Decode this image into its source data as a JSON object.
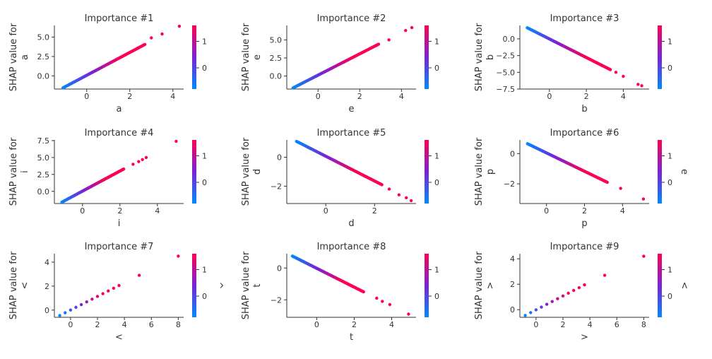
{
  "colorbar": {
    "colors": [
      "#008afb",
      "#7a22d8",
      "#ff0052"
    ]
  },
  "chart_data": [
    {
      "type": "scatter",
      "title": "Importance #1",
      "ylabel_lines": [
        "SHAP value for",
        "a"
      ],
      "xlabel": "a",
      "color_label": "",
      "xlim": [
        -1.5,
        4.5
      ],
      "ylim": [
        -1.7,
        6.5
      ],
      "xticks": [
        0,
        2,
        4
      ],
      "xtick_labels": [
        "0",
        "2",
        "4"
      ],
      "yticks": [
        0.0,
        2.5,
        5.0
      ],
      "ytick_labels": [
        "0.0",
        "2.5",
        "5.0"
      ],
      "cticks": [
        1,
        0
      ],
      "ctick_labels": [
        "1",
        "0"
      ],
      "clim": [
        -0.8,
        1.6
      ],
      "line": {
        "x0": -1.1,
        "x1": 2.7,
        "y0": -1.55,
        "y1": 4.05,
        "n": 130
      },
      "outliers": [
        [
          3.0,
          4.9
        ],
        [
          3.5,
          5.4
        ],
        [
          4.3,
          6.4
        ]
      ]
    },
    {
      "type": "scatter",
      "title": "Importance #2",
      "ylabel_lines": [
        "SHAP value for",
        "e"
      ],
      "xlabel": "e",
      "color_label": "",
      "xlim": [
        -1.5,
        4.7
      ],
      "ylim": [
        -1.8,
        7.0
      ],
      "xticks": [
        0,
        2,
        4
      ],
      "xtick_labels": [
        "0",
        "2",
        "4"
      ],
      "yticks": [
        0.0,
        2.5,
        5.0
      ],
      "ytick_labels": [
        "0.0",
        "2.5",
        "5.0"
      ],
      "cticks": [
        1,
        0
      ],
      "ctick_labels": [
        "1",
        "0"
      ],
      "clim": [
        -0.8,
        1.6
      ],
      "line": {
        "x0": -1.2,
        "x1": 2.9,
        "y0": -1.65,
        "y1": 4.4,
        "n": 130
      },
      "outliers": [
        [
          3.4,
          5.0
        ],
        [
          4.2,
          6.3
        ],
        [
          4.5,
          6.7
        ]
      ]
    },
    {
      "type": "scatter",
      "title": "Importance #3",
      "ylabel_lines": [
        "SHAP value for",
        "b"
      ],
      "xlabel": "b",
      "color_label": "",
      "xlim": [
        -1.6,
        5.4
      ],
      "ylim": [
        -7.5,
        2.0
      ],
      "xticks": [
        0,
        2,
        4
      ],
      "xtick_labels": [
        "0",
        "2",
        "4"
      ],
      "yticks": [
        0.0,
        -2.5,
        -5.0,
        -7.5
      ],
      "ytick_labels": [
        "0.0",
        "−2.5",
        "−5.0",
        "−7.5"
      ],
      "cticks": [
        1,
        0
      ],
      "ctick_labels": [
        "1",
        "0"
      ],
      "clim": [
        -0.8,
        1.6
      ],
      "line": {
        "x0": -1.2,
        "x1": 3.3,
        "y0": 1.65,
        "y1": -4.6,
        "n": 130
      },
      "outliers": [
        [
          3.6,
          -5.0
        ],
        [
          4.0,
          -5.6
        ],
        [
          4.8,
          -6.8
        ],
        [
          5.0,
          -7.0
        ]
      ]
    },
    {
      "type": "scatter",
      "title": "Importance #4",
      "ylabel_lines": [
        "SHAP value for",
        "i"
      ],
      "xlabel": "i",
      "color_label": "",
      "xlim": [
        -1.5,
        5.4
      ],
      "ylim": [
        -1.8,
        7.6
      ],
      "xticks": [
        0,
        2,
        4
      ],
      "xtick_labels": [
        "0",
        "2",
        "4"
      ],
      "yticks": [
        0.0,
        2.5,
        5.0,
        7.5
      ],
      "ytick_labels": [
        "0.0",
        "2.5",
        "5.0",
        "7.5"
      ],
      "cticks": [
        1,
        0
      ],
      "ctick_labels": [
        "1",
        "0"
      ],
      "clim": [
        -0.8,
        1.6
      ],
      "line": {
        "x0": -1.1,
        "x1": 2.2,
        "y0": -1.6,
        "y1": 3.3,
        "n": 120
      },
      "outliers": [
        [
          2.7,
          4.0
        ],
        [
          3.0,
          4.4
        ],
        [
          3.2,
          4.7
        ],
        [
          3.4,
          5.0
        ],
        [
          5.0,
          7.4
        ]
      ]
    },
    {
      "type": "scatter",
      "title": "Importance #5",
      "ylabel_lines": [
        "SHAP value for",
        "d"
      ],
      "xlabel": "d",
      "color_label": "",
      "xlim": [
        -1.6,
        3.7
      ],
      "ylim": [
        -3.2,
        1.2
      ],
      "xticks": [
        0,
        2
      ],
      "xtick_labels": [
        "0",
        "2"
      ],
      "yticks": [
        0,
        -2
      ],
      "ytick_labels": [
        "0",
        "−2"
      ],
      "cticks": [
        1,
        0
      ],
      "ctick_labels": [
        "1",
        "0"
      ],
      "clim": [
        -0.8,
        1.6
      ],
      "line": {
        "x0": -1.2,
        "x1": 2.3,
        "y0": 1.1,
        "y1": -1.9,
        "n": 130
      },
      "outliers": [
        [
          2.6,
          -2.2
        ],
        [
          3.0,
          -2.6
        ],
        [
          3.3,
          -2.8
        ],
        [
          3.5,
          -3.0
        ]
      ]
    },
    {
      "type": "scatter",
      "title": "Importance #6",
      "ylabel_lines": [
        "SHAP value for",
        "p"
      ],
      "xlabel": "p",
      "color_label": "e",
      "xlim": [
        -1.4,
        5.4
      ],
      "ylim": [
        -3.3,
        0.9
      ],
      "xticks": [
        0,
        2,
        4
      ],
      "xtick_labels": [
        "0",
        "2",
        "4"
      ],
      "yticks": [
        0,
        -2
      ],
      "ytick_labels": [
        "0",
        "−2"
      ],
      "cticks": [
        1,
        0
      ],
      "ctick_labels": [
        "1",
        "0"
      ],
      "clim": [
        -0.8,
        1.6
      ],
      "line": {
        "x0": -1.0,
        "x1": 3.2,
        "y0": 0.65,
        "y1": -1.9,
        "n": 130
      },
      "outliers": [
        [
          3.9,
          -2.3
        ],
        [
          5.1,
          -3.0
        ]
      ]
    },
    {
      "type": "scatter",
      "title": "Importance #7",
      "ylabel_lines": [
        "SHAP value for",
        "<"
      ],
      "xlabel": "<",
      "color_label": "^",
      "xlim": [
        -1.2,
        8.4
      ],
      "ylim": [
        -0.6,
        4.7
      ],
      "xticks": [
        0,
        2,
        4,
        6,
        8
      ],
      "xtick_labels": [
        "0",
        "2",
        "4",
        "6",
        "8"
      ],
      "yticks": [
        0,
        2,
        4
      ],
      "ytick_labels": [
        "0",
        "2",
        "4"
      ],
      "cticks": [
        1,
        0
      ],
      "ctick_labels": [
        "1",
        "0"
      ],
      "clim": [
        -0.8,
        1.6
      ],
      "line": {
        "x0": -0.8,
        "x1": 3.6,
        "y0": -0.45,
        "y1": 2.05,
        "n": 12
      },
      "outliers": [
        [
          5.1,
          2.9
        ],
        [
          8.0,
          4.5
        ]
      ]
    },
    {
      "type": "scatter",
      "title": "Importance #8",
      "ylabel_lines": [
        "SHAP value for",
        "t"
      ],
      "xlabel": "t",
      "color_label": "",
      "xlim": [
        -1.6,
        5.3
      ],
      "ylim": [
        -3.1,
        0.9
      ],
      "xticks": [
        0,
        2,
        4
      ],
      "xtick_labels": [
        "0",
        "2",
        "4"
      ],
      "yticks": [
        0,
        -2
      ],
      "ytick_labels": [
        "0",
        "−2"
      ],
      "cticks": [
        1,
        0
      ],
      "ctick_labels": [
        "1",
        "0"
      ],
      "clim": [
        -0.8,
        1.6
      ],
      "line": {
        "x0": -1.3,
        "x1": 2.5,
        "y0": 0.75,
        "y1": -1.5,
        "n": 130
      },
      "outliers": [
        [
          3.2,
          -1.9
        ],
        [
          3.5,
          -2.1
        ],
        [
          3.9,
          -2.3
        ],
        [
          4.9,
          -2.9
        ]
      ]
    },
    {
      "type": "scatter",
      "title": "Importance #9",
      "ylabel_lines": [
        "SHAP value for",
        ">"
      ],
      "xlabel": ">",
      "color_label": "<",
      "xlim": [
        -1.2,
        8.4
      ],
      "ylim": [
        -0.6,
        4.4
      ],
      "xticks": [
        0,
        2,
        4,
        6,
        8
      ],
      "xtick_labels": [
        "0",
        "2",
        "4",
        "6",
        "8"
      ],
      "yticks": [
        0,
        2,
        4
      ],
      "ytick_labels": [
        "0",
        "2",
        "4"
      ],
      "cticks": [
        1,
        0
      ],
      "ctick_labels": [
        "1",
        "0"
      ],
      "clim": [
        -0.8,
        1.6
      ],
      "line": {
        "x0": -0.8,
        "x1": 3.6,
        "y0": -0.45,
        "y1": 1.95,
        "n": 12
      },
      "outliers": [
        [
          5.1,
          2.7
        ],
        [
          8.0,
          4.2
        ]
      ]
    }
  ]
}
